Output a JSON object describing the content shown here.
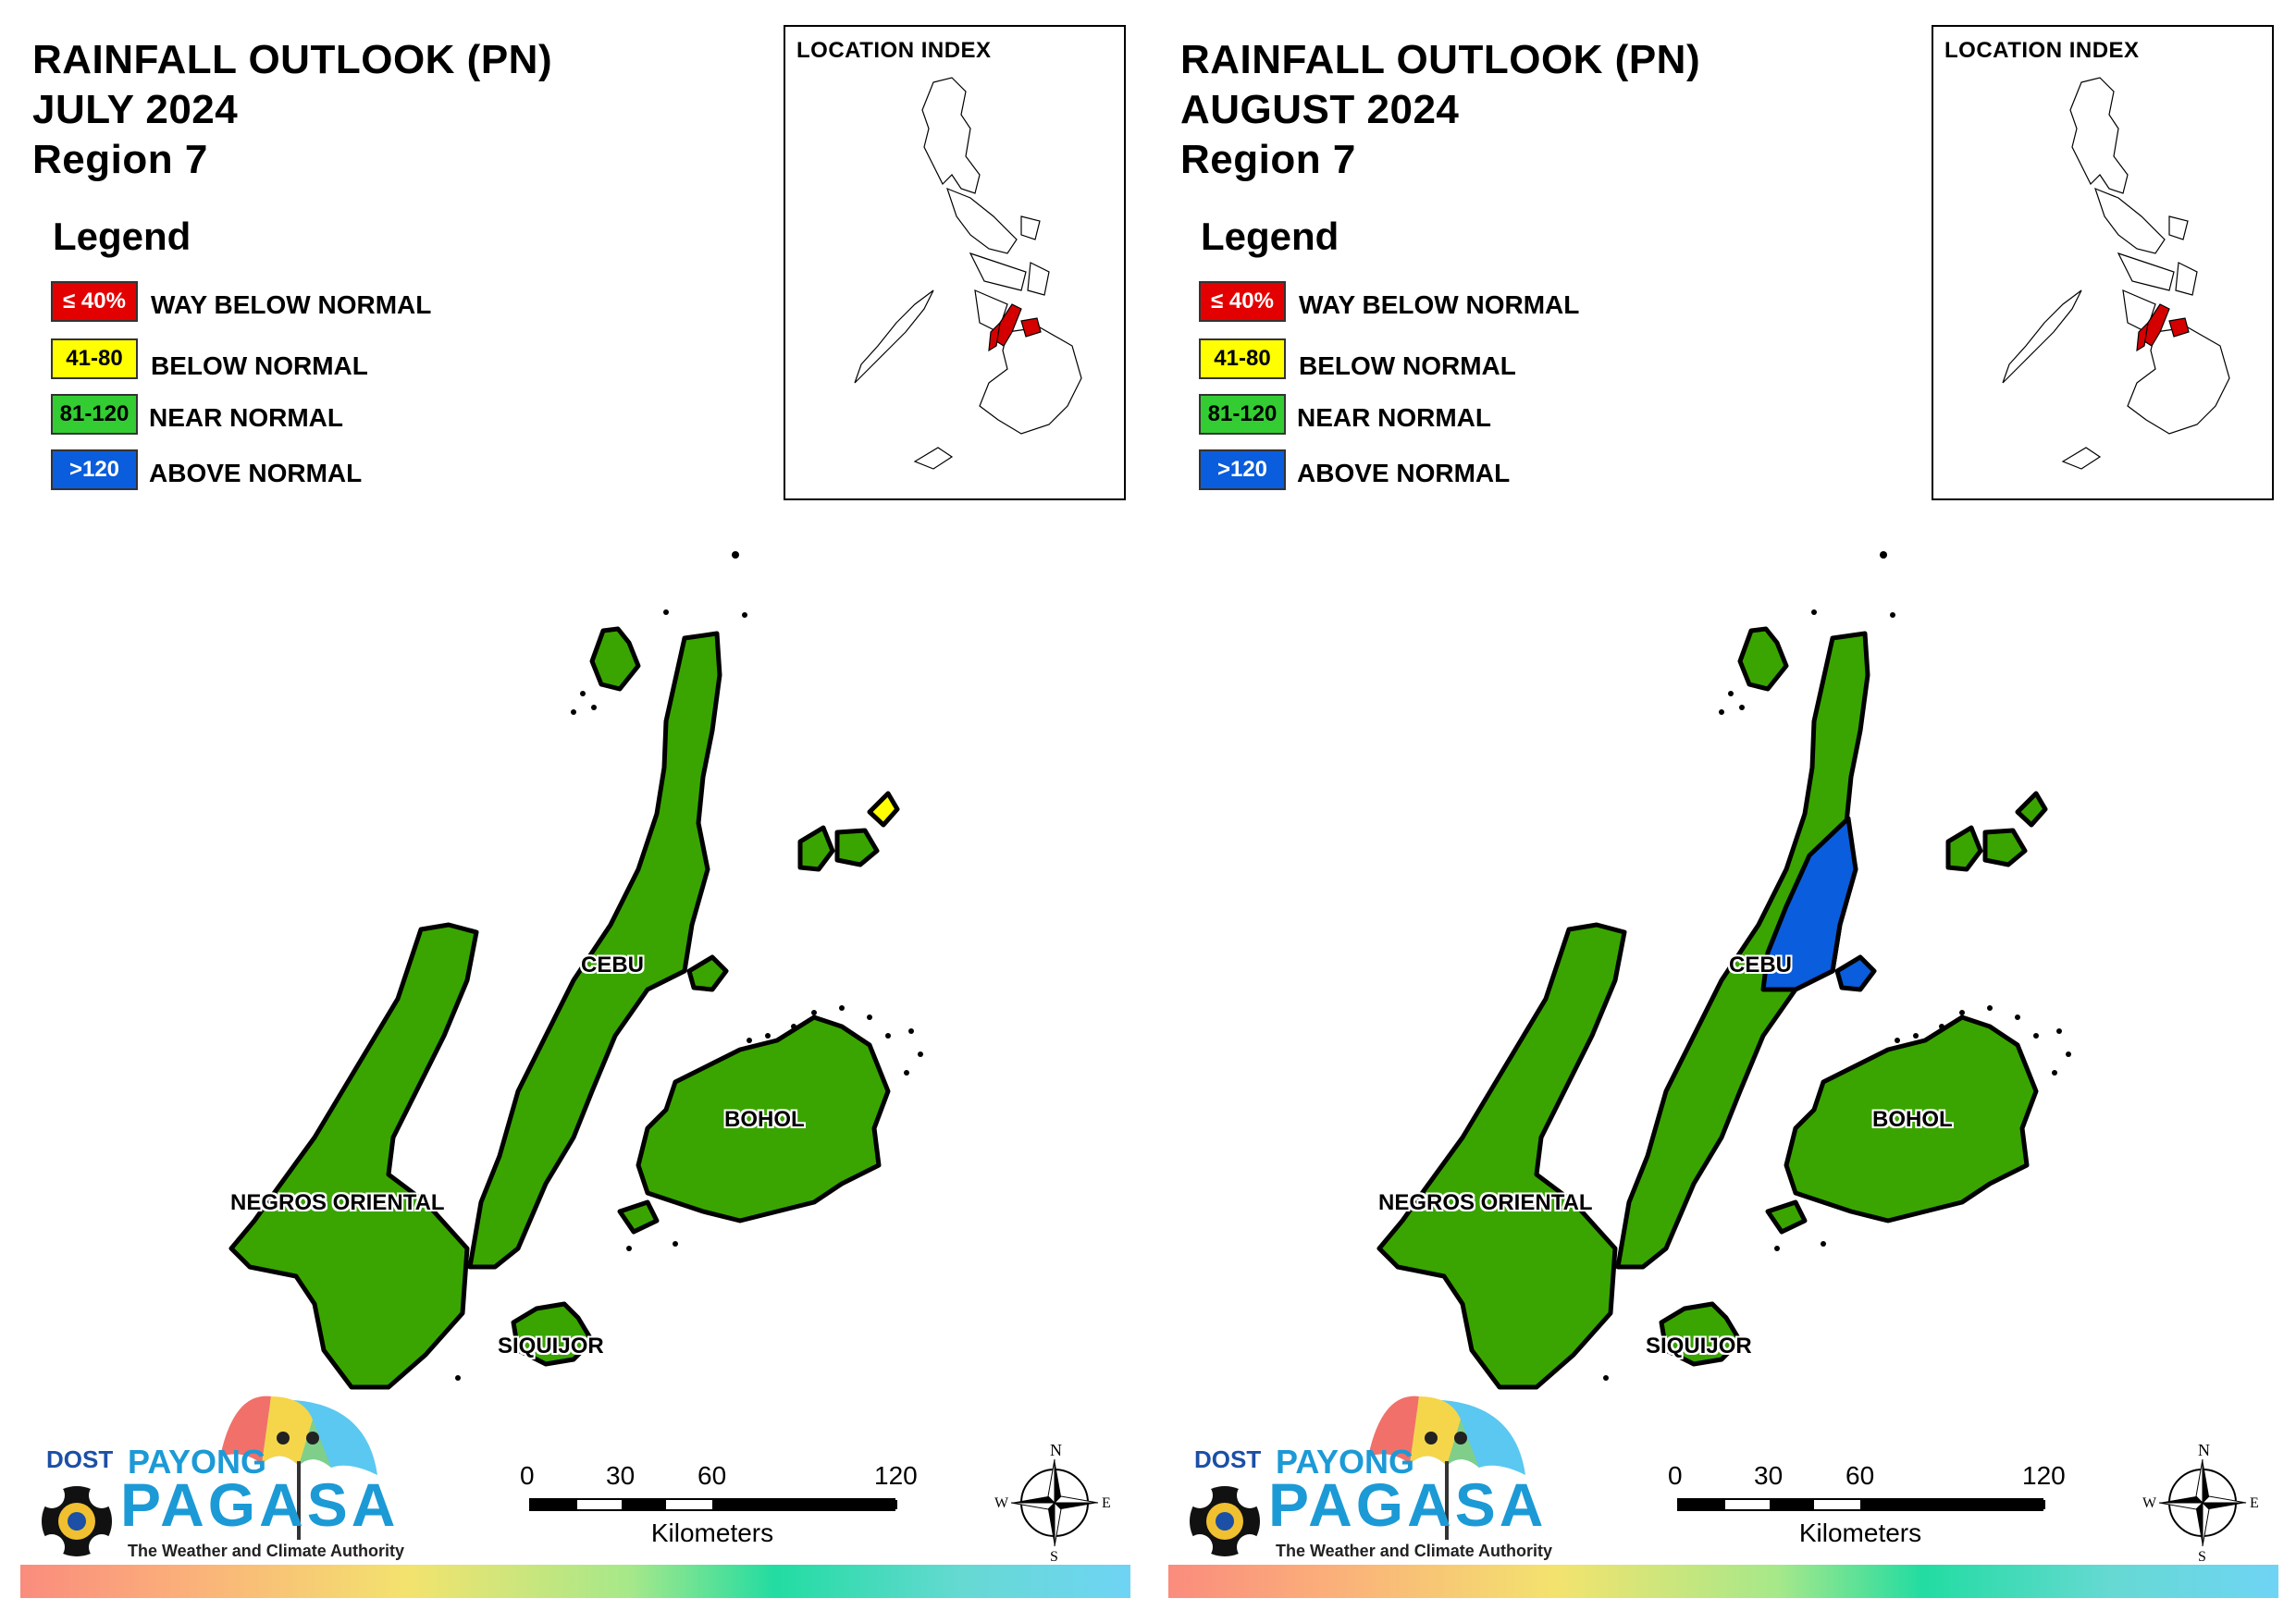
{
  "panels": [
    {
      "title_lines": [
        "RAINFALL OUTLOOK (PN)",
        "JULY 2024",
        "Region 7"
      ],
      "month": "JULY 2024",
      "cebu_fill": "green",
      "bantayan_fill": "yellow"
    },
    {
      "title_lines": [
        "RAINFALL OUTLOOK (PN)",
        "AUGUST 2024",
        "Region 7"
      ],
      "month": "AUGUST 2024",
      "cebu_fill": "green_with_blue_area",
      "bantayan_fill": "green"
    }
  ],
  "legend": {
    "title": "Legend",
    "items": [
      {
        "range": "≤ 40%",
        "label": "WAY BELOW NORMAL",
        "color": "#e30000",
        "text_color": "#ffffff"
      },
      {
        "range": "41-80",
        "label": "BELOW NORMAL",
        "color": "#ffff00",
        "text_color": "#000000"
      },
      {
        "range": "81-120",
        "label": "NEAR NORMAL",
        "color": "#33cc33",
        "text_color": "#000000"
      },
      {
        "range": ">120",
        "label": "ABOVE NORMAL",
        "color": "#0a5ddc",
        "text_color": "#ffffff"
      }
    ]
  },
  "inset": {
    "title": "LOCATION INDEX"
  },
  "provinces": [
    "CEBU",
    "BOHOL",
    "NEGROS ORIENTAL",
    "SIQUIJOR"
  ],
  "map_colors": {
    "near_normal": "#3aa500",
    "above_normal": "#0a5ddc",
    "below_normal": "#ffff00",
    "highlight": "#d40000"
  },
  "scale": {
    "ticks": [
      "0",
      "30",
      "60",
      "120"
    ],
    "unit": "Kilometers"
  },
  "compass": {
    "n": "N",
    "e": "E",
    "s": "S",
    "w": "W"
  },
  "logo": {
    "dost": "DOST",
    "payong": "PAYONG",
    "pagasa": "PAGASA",
    "tagline": "The Weather and Climate Authority"
  }
}
